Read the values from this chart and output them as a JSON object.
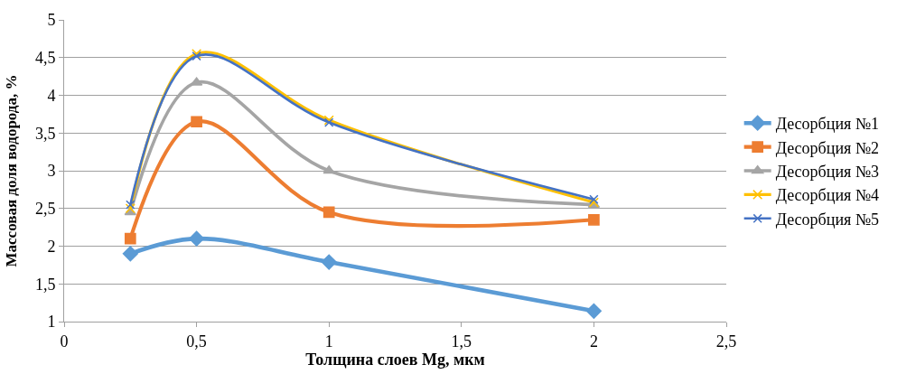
{
  "chart_data": {
    "type": "line",
    "xlabel": "Толщина слоев Mg, мкм",
    "ylabel": "Массовая доля водорода, %",
    "x": [
      0.25,
      0.5,
      1,
      2
    ],
    "series": [
      {
        "name": "Десорбция №1",
        "color": "#5b9bd5",
        "marker": "diamond",
        "values": [
          1.9,
          2.1,
          1.79,
          1.14
        ]
      },
      {
        "name": "Десорбция №2",
        "color": "#ed7d31",
        "marker": "square",
        "values": [
          2.1,
          3.65,
          2.45,
          2.35
        ]
      },
      {
        "name": "Десорбция №3",
        "color": "#a5a5a5",
        "marker": "triangle",
        "values": [
          2.45,
          4.17,
          3.0,
          2.55
        ]
      },
      {
        "name": "Десорбция №4",
        "color": "#ffc000",
        "marker": "cross",
        "values": [
          2.5,
          4.55,
          3.67,
          2.58
        ]
      },
      {
        "name": "Десорбция №5",
        "color": "#4472c4",
        "marker": "cross",
        "values": [
          2.55,
          4.52,
          3.64,
          2.62
        ]
      }
    ],
    "xlim": [
      0,
      2.5
    ],
    "xticks": [
      0,
      {
        "value": 0.5,
        "label": "0,5"
      },
      1,
      {
        "value": 1.5,
        "label": "1,5"
      },
      2,
      {
        "value": 2.5,
        "label": "2,5"
      }
    ],
    "ylim": [
      1,
      5
    ],
    "yticks": [
      1,
      {
        "value": 1.5,
        "label": "1,5"
      },
      2,
      {
        "value": 2.5,
        "label": "2,5"
      },
      3,
      {
        "value": 3.5,
        "label": "3,5"
      },
      4,
      {
        "value": 4.5,
        "label": "4,5"
      },
      5
    ],
    "grid": "y",
    "legend": "right",
    "line_style": "solid"
  }
}
